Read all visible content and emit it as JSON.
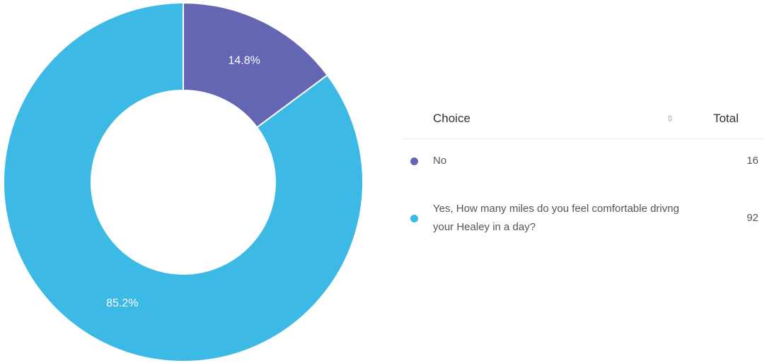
{
  "chart_data": {
    "type": "pie",
    "variant": "donut",
    "categories": [
      "No",
      "Yes, How many miles do you feel comfortable drivng your Healey in a day?"
    ],
    "values": [
      16,
      92
    ],
    "percent_labels": [
      "14.8%",
      "85.2%"
    ],
    "colors": [
      "#6466b3",
      "#3db9e5"
    ],
    "legend_placement": "right"
  },
  "table": {
    "headers": {
      "choice": "Choice",
      "sort_icon": "sort-icon",
      "total": "Total"
    },
    "rows": [
      {
        "label": "No",
        "total": "16",
        "color": "#6466b3"
      },
      {
        "label": "Yes, How many miles do you feel comfortable drivng your Healey in a day?",
        "total": "92",
        "color": "#3db9e5"
      }
    ]
  }
}
